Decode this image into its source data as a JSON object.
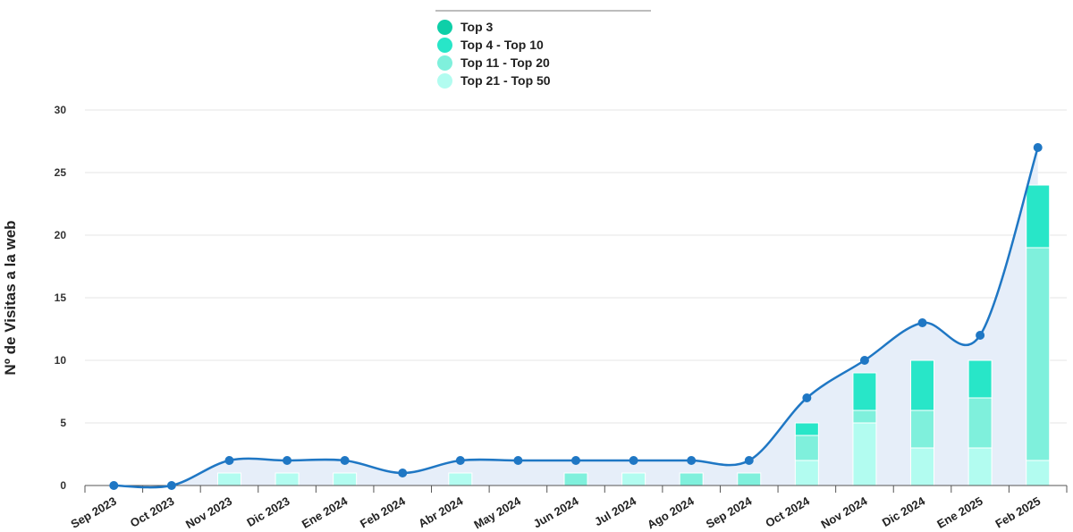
{
  "chart_data": {
    "type": "bar",
    "ylabel": "Nº de Visitas a la web",
    "ylim": [
      0,
      30
    ],
    "yticks": [
      0,
      5,
      10,
      15,
      20,
      25,
      30
    ],
    "grid": true,
    "legend_position": "top-center",
    "categories": [
      "Sep 2023",
      "Oct 2023",
      "Nov 2023",
      "Dic 2023",
      "Ene 2024",
      "Feb 2024",
      "Abr 2024",
      "May 2024",
      "Jun 2024",
      "Jul 2024",
      "Ago 2024",
      "Sep 2024",
      "Oct 2024",
      "Nov 2024",
      "Dic 2024",
      "Ene 2025",
      "Feb 2025"
    ],
    "series": [
      {
        "name": "Top 3",
        "color": "#0ecfa8",
        "values": [
          0,
          0,
          0,
          0,
          0,
          0,
          0,
          0,
          0,
          0,
          0,
          0,
          0,
          0,
          0,
          0,
          0
        ]
      },
      {
        "name": "Top 4 - Top 10",
        "color": "#28e6c8",
        "values": [
          0,
          0,
          0,
          0,
          0,
          0,
          0,
          0,
          0,
          0,
          0,
          0,
          1,
          3,
          4,
          3,
          5
        ]
      },
      {
        "name": "Top 11 - Top 20",
        "color": "#7ff0dc",
        "values": [
          0,
          0,
          0,
          0,
          0,
          0,
          0,
          0,
          1,
          0,
          1,
          1,
          2,
          1,
          3,
          4,
          17
        ]
      },
      {
        "name": "Top 21 - Top 50",
        "color": "#b2fcf0",
        "values": [
          0,
          0,
          1,
          1,
          1,
          0,
          1,
          0,
          0,
          1,
          0,
          0,
          2,
          5,
          3,
          3,
          2
        ]
      }
    ],
    "total_line": {
      "type": "area-spline",
      "color": "#1f77c4",
      "fill": "#e6eef9",
      "values": [
        0,
        0,
        2,
        2,
        2,
        1,
        2,
        2,
        2,
        2,
        2,
        2,
        7,
        10,
        13,
        12,
        27
      ]
    }
  }
}
